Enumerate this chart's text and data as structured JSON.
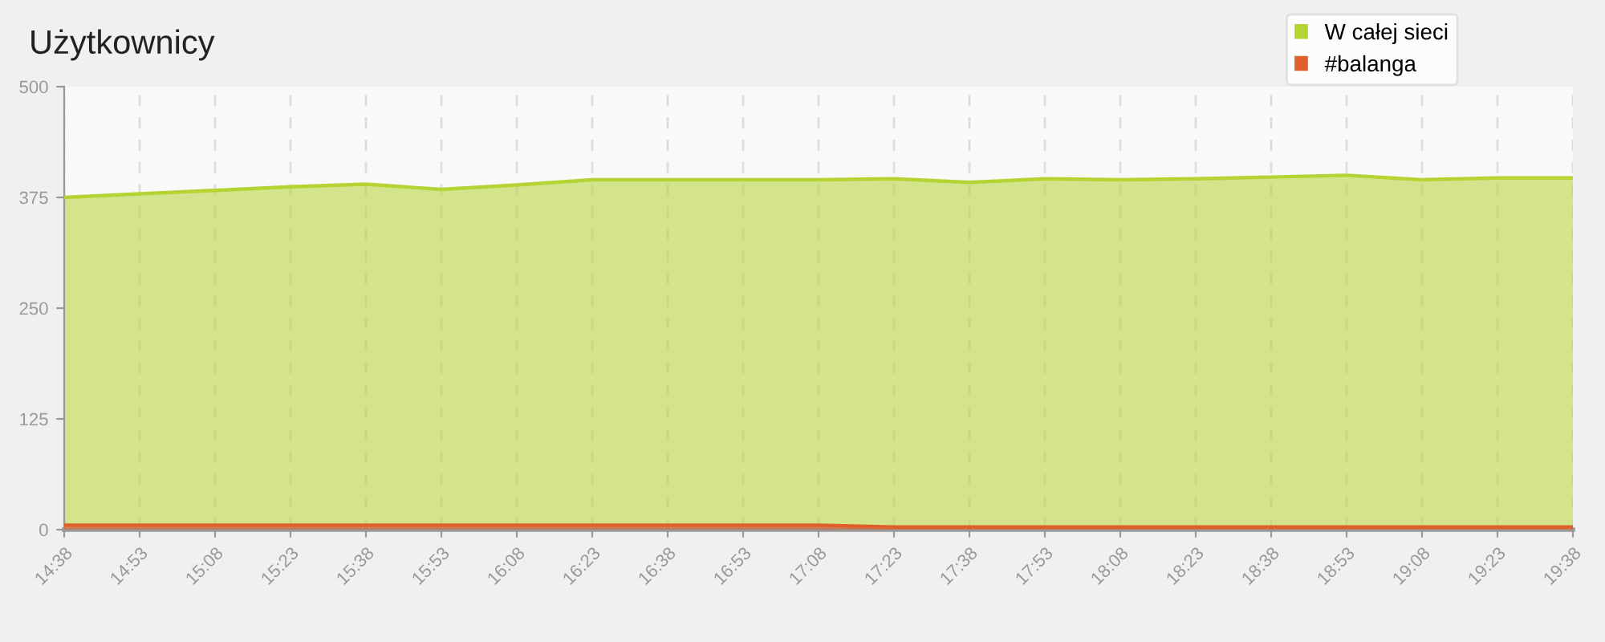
{
  "chart_data": {
    "type": "area",
    "title": "Użytkownicy",
    "categories": [
      "14:38",
      "14:53",
      "15:08",
      "15:23",
      "15:38",
      "15:53",
      "16:08",
      "16:23",
      "16:38",
      "16:53",
      "17:08",
      "17:23",
      "17:38",
      "17:53",
      "18:08",
      "18:23",
      "18:38",
      "18:53",
      "19:08",
      "19:23",
      "19:38"
    ],
    "series": [
      {
        "name": "W całej sieci",
        "color": "#b5d433",
        "values": [
          375,
          379,
          383,
          387,
          390,
          384,
          389,
          395,
          395,
          395,
          395,
          396,
          392,
          396,
          395,
          396,
          398,
          400,
          395,
          397,
          397
        ]
      },
      {
        "name": "#balanga",
        "color": "#e0602a",
        "values": [
          5,
          5,
          5,
          5,
          5,
          5,
          5,
          5,
          5,
          5,
          5,
          3,
          3,
          3,
          3,
          3,
          3,
          3,
          3,
          3,
          3
        ]
      }
    ],
    "ylim": [
      0,
      500
    ],
    "yticks": [
      0,
      125,
      250,
      375,
      500
    ],
    "grid": "x",
    "legend": "top right"
  }
}
